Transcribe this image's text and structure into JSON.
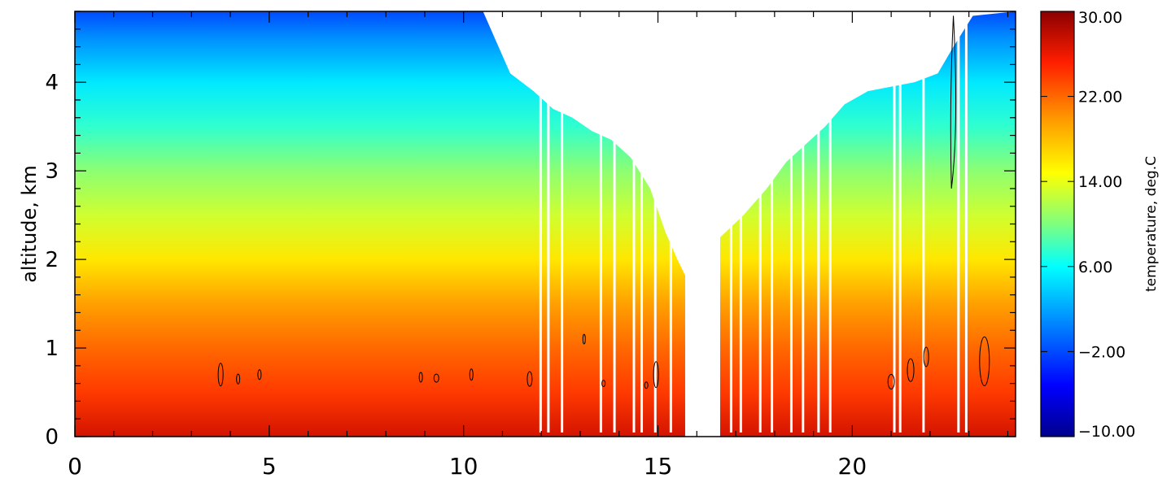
{
  "chart_data": {
    "type": "heatmap",
    "title": "",
    "xlabel": "",
    "ylabel": "altitude,  km",
    "xlim": [
      0,
      24.2
    ],
    "ylim": [
      0,
      4.8
    ],
    "x_ticks": [
      0,
      5,
      10,
      15,
      20
    ],
    "x_tick_labels": [
      "0",
      "5",
      "10",
      "15",
      "20"
    ],
    "y_ticks": [
      0,
      1,
      2,
      3,
      4
    ],
    "y_tick_labels": [
      "0",
      "1",
      "2",
      "3",
      "4"
    ],
    "z_variable": "temperature",
    "z_unit": "deg.C",
    "colorbar": {
      "label": "temperature,  deg.C",
      "range": [
        -10,
        30
      ],
      "ticks": [
        30,
        22,
        14,
        6,
        -2,
        -10
      ],
      "tick_labels": [
        "30.00",
        "22.00",
        "14.00",
        "6.00",
        "−2.00",
        "−10.00"
      ],
      "colormap": "rainbow (dark blue → blue → cyan → yellow → orange → red → dark red)"
    },
    "approx_profile": {
      "altitude_km": [
        0,
        0.5,
        1.0,
        1.5,
        2.0,
        2.5,
        3.0,
        3.5,
        4.0,
        4.5,
        4.8
      ],
      "temperature_c": [
        27,
        24,
        22,
        19.5,
        16,
        13,
        10.5,
        7.5,
        5,
        1,
        -2
      ]
    },
    "data_top_km": {
      "x": [
        0,
        10.5,
        10.8,
        11.2,
        11.8,
        12.3,
        12.8,
        13.3,
        13.8,
        14.3,
        14.8,
        15.2,
        15.5,
        15.7,
        16.6,
        17.2,
        17.8,
        18.3,
        18.8,
        19.3,
        19.8,
        20.4,
        21.0,
        21.6,
        22.2,
        22.6,
        23.1,
        24.2
      ],
      "y": [
        4.8,
        4.8,
        4.5,
        4.1,
        3.9,
        3.7,
        3.6,
        3.45,
        3.35,
        3.15,
        2.8,
        2.3,
        2.0,
        1.82,
        2.25,
        2.5,
        2.8,
        3.1,
        3.3,
        3.5,
        3.75,
        3.9,
        3.95,
        4.0,
        4.1,
        4.4,
        4.75,
        4.8
      ]
    },
    "no_data_x_range": [
      15.7,
      16.6
    ],
    "grid": false,
    "legend": "colorbar-right"
  }
}
